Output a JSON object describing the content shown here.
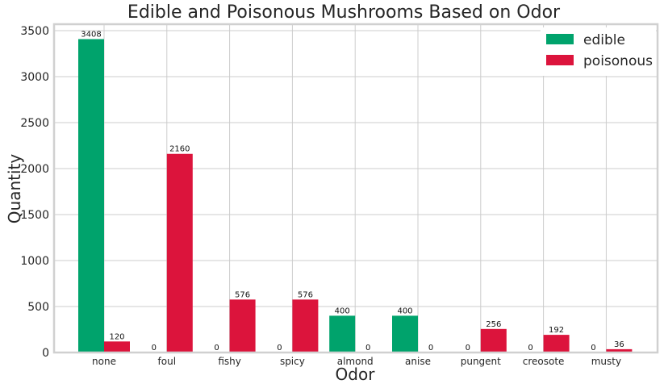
{
  "chart_data": {
    "type": "bar",
    "title": "Edible and Poisonous Mushrooms Based on Odor",
    "xlabel": "Odor",
    "ylabel": "Quantity",
    "categories": [
      "none",
      "foul",
      "fishy",
      "spicy",
      "almond",
      "anise",
      "pungent",
      "creosote",
      "musty"
    ],
    "series": [
      {
        "name": "edible",
        "color": "#00a36c",
        "values": [
          3408,
          0,
          0,
          0,
          400,
          400,
          0,
          0,
          0
        ]
      },
      {
        "name": "poisonous",
        "color": "#dc143c",
        "values": [
          120,
          2160,
          576,
          576,
          0,
          0,
          256,
          192,
          36
        ]
      }
    ],
    "ylim": [
      0,
      3570
    ],
    "yticks": [
      0,
      500,
      1000,
      1500,
      2000,
      2500,
      3000,
      3500
    ],
    "grid": true,
    "legend_position": "top-right"
  }
}
